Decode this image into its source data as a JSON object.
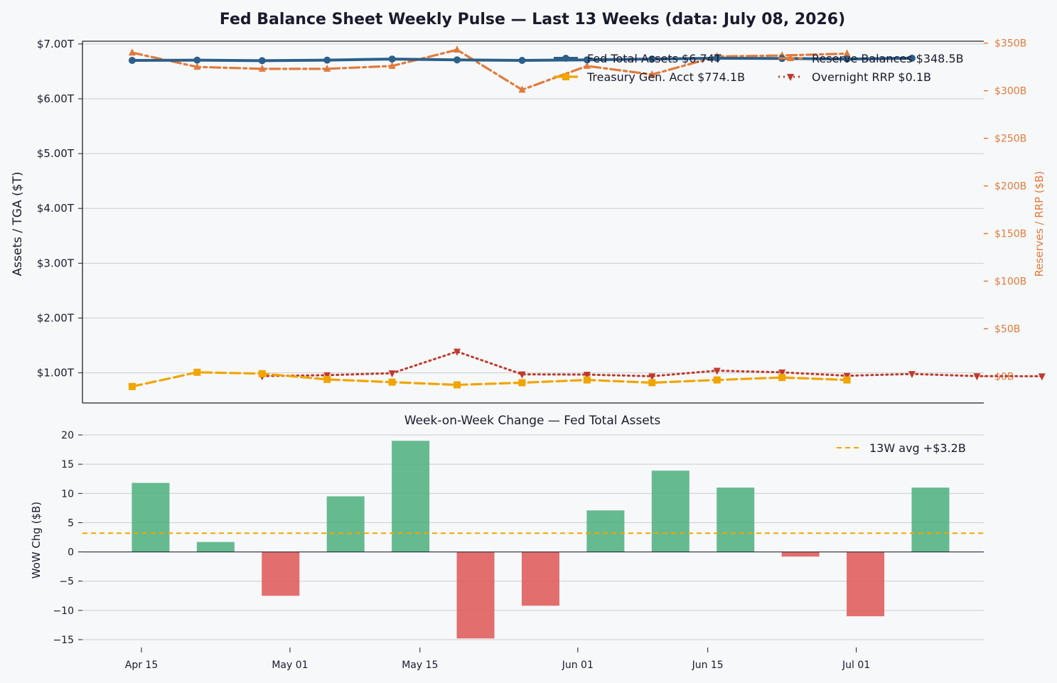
{
  "title": "Fed Balance Sheet Weekly Pulse — Last 13 Weeks  (data: July 08, 2026)",
  "colors": {
    "background": "#f7f8fa",
    "assets": "#2c5f8a",
    "reserves": "#e07b3c",
    "tga": "#f0a500",
    "rrp": "#c0392b",
    "positive_bar": "#52b07f",
    "negative_bar": "#e05a5a",
    "grid": "#cccccc",
    "text": "#1a1a2e"
  },
  "chart_data": [
    {
      "type": "line",
      "ylabel": "Assets / TGA ($T)",
      "y2label": "Reserves / RRP ($B)",
      "ylim": [
        0.45,
        7.05
      ],
      "y2lim": [
        -28,
        352
      ],
      "yticks": [
        "$1.00T",
        "$2.00T",
        "$3.00T",
        "$4.00T",
        "$5.00T",
        "$6.00T",
        "$7.00T"
      ],
      "y2ticks": [
        "$0B",
        "$50B",
        "$100B",
        "$150B",
        "$200B",
        "$250B",
        "$300B",
        "$350B"
      ],
      "grid": true,
      "legend_position": "top-right",
      "x_dates": [
        "2026-04-14",
        "2026-04-21",
        "2026-04-28",
        "2026-05-05",
        "2026-05-12",
        "2026-05-19",
        "2026-05-26",
        "2026-06-02",
        "2026-06-09",
        "2026-06-16",
        "2026-06-23",
        "2026-06-30",
        "2026-07-07"
      ],
      "series": [
        {
          "name": "Fed Total Assets",
          "legend_label": "Fed Total Assets  $6.74T",
          "axis": "left",
          "style": "solid",
          "marker": "circle",
          "color_key": "assets",
          "x": [
            "2026-04-14",
            "2026-04-21",
            "2026-04-28",
            "2026-05-05",
            "2026-05-12",
            "2026-05-19",
            "2026-05-26",
            "2026-06-02",
            "2026-06-09",
            "2026-06-16",
            "2026-06-23",
            "2026-06-30",
            "2026-07-07"
          ],
          "values": [
            6.7,
            6.705,
            6.695,
            6.705,
            6.725,
            6.71,
            6.7,
            6.71,
            6.725,
            6.74,
            6.735,
            6.725,
            6.74
          ]
        },
        {
          "name": "Reserve Balances",
          "legend_label": "Reserve Balances  $348.5B",
          "axis": "right",
          "style": "dashdot",
          "marker": "triangle-up",
          "color_key": "reserves",
          "x": [
            "2026-04-14",
            "2026-04-21",
            "2026-04-28",
            "2026-05-05",
            "2026-05-12",
            "2026-05-19",
            "2026-05-26",
            "2026-06-02",
            "2026-06-09",
            "2026-06-16",
            "2026-06-23",
            "2026-06-30"
          ],
          "values": [
            340,
            325,
            323,
            323,
            326,
            343,
            301,
            326,
            317,
            336,
            337,
            339
          ]
        },
        {
          "name": "Treasury Gen. Acct",
          "legend_label": "Treasury Gen. Acct  $774.1B",
          "axis": "left",
          "style": "dashed",
          "marker": "square",
          "color_key": "tga",
          "x": [
            "2026-04-14",
            "2026-04-21",
            "2026-04-28",
            "2026-05-05",
            "2026-05-12",
            "2026-05-19",
            "2026-05-26",
            "2026-06-02",
            "2026-06-09",
            "2026-06-16",
            "2026-06-23",
            "2026-06-30"
          ],
          "values": [
            0.75,
            1.01,
            0.985,
            0.88,
            0.83,
            0.78,
            0.82,
            0.87,
            0.82,
            0.87,
            0.915,
            0.87
          ]
        },
        {
          "name": "Overnight RRP",
          "legend_label": "Overnight RRP  $0.1B",
          "axis": "right",
          "style": "dotted",
          "marker": "triangle-down",
          "color_key": "rrp",
          "x": [
            "2026-04-28",
            "2026-05-05",
            "2026-05-12",
            "2026-05-19",
            "2026-05-26",
            "2026-06-02",
            "2026-06-09",
            "2026-06-16",
            "2026-06-23",
            "2026-06-30",
            "2026-07-07",
            "2026-07-14",
            "2026-07-21"
          ],
          "values": [
            0.3,
            1.2,
            3.3,
            26.0,
            2.1,
            1.8,
            0.1,
            6.0,
            4.2,
            0.6,
            2.5,
            0.2,
            0.1
          ]
        }
      ]
    },
    {
      "type": "bar",
      "title": "Week-on-Week Change — Fed Total Assets",
      "ylabel": "WoW Chg ($B)",
      "ylim": [
        -16.5,
        20.5
      ],
      "yticks": [
        -15,
        -10,
        -5,
        0,
        5,
        10,
        15,
        20
      ],
      "grid": true,
      "legend_position": "top-right",
      "x_dates": [
        "2026-04-14",
        "2026-04-21",
        "2026-04-28",
        "2026-05-05",
        "2026-05-12",
        "2026-05-19",
        "2026-05-26",
        "2026-06-02",
        "2026-06-09",
        "2026-06-16",
        "2026-06-23",
        "2026-06-30",
        "2026-07-07"
      ],
      "values": [
        11.8,
        1.7,
        -7.5,
        9.5,
        19.0,
        -14.8,
        -9.2,
        7.1,
        13.9,
        11.0,
        -0.8,
        -11.0,
        11.0
      ],
      "average": 3.2,
      "average_label": "13W avg  +$3.2B",
      "xticks": [
        {
          "date": "2026-04-15",
          "label": "Apr 15"
        },
        {
          "date": "2026-05-01",
          "label": "May 01"
        },
        {
          "date": "2026-05-15",
          "label": "May 15"
        },
        {
          "date": "2026-06-01",
          "label": "Jun 01"
        },
        {
          "date": "2026-06-15",
          "label": "Jun 15"
        },
        {
          "date": "2026-07-01",
          "label": "Jul 01"
        }
      ]
    }
  ]
}
